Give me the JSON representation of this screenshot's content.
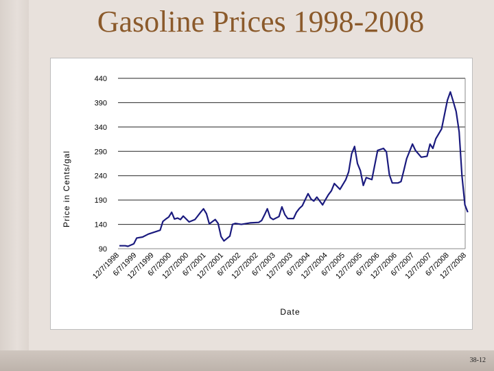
{
  "slide": {
    "title": "Gasoline Prices 1998-2008",
    "page_number": "38-12"
  },
  "chart_data": {
    "type": "line",
    "title": "",
    "xlabel": "Date",
    "ylabel": "Price in Cents/gal",
    "ylim": [
      90,
      440
    ],
    "yticks": [
      90,
      140,
      190,
      240,
      290,
      340,
      390,
      440
    ],
    "grid": "horizontal",
    "legend": "none",
    "line_color": "#1a1a7e",
    "xticks": [
      "12/7/1998",
      "6/7/1999",
      "12/7/1999",
      "6/7/2000",
      "12/7/2000",
      "6/7/2001",
      "12/7/2001",
      "6/7/2002",
      "12/7/2002",
      "6/7/2003",
      "12/7/2003",
      "6/7/2004",
      "12/7/2004",
      "6/7/2005",
      "12/7/2005",
      "6/7/2006",
      "12/7/2006",
      "6/7/2007",
      "12/7/2007",
      "6/7/2008",
      "12/7/2008"
    ],
    "series": [
      {
        "x": [
          "12/7/1998",
          "2/7/1999",
          "3/7/1999",
          "5/7/1999",
          "6/7/1999",
          "8/7/1999",
          "10/7/1999",
          "12/7/1999",
          "2/7/2000",
          "3/7/2000",
          "4/7/2000",
          "5/7/2000",
          "6/7/2000",
          "7/7/2000",
          "8/7/2000",
          "9/7/2000",
          "10/7/2000",
          "12/7/2000",
          "2/7/2001",
          "4/7/2001",
          "5/7/2001",
          "6/7/2001",
          "7/7/2001",
          "9/7/2001",
          "10/7/2001",
          "11/7/2001",
          "12/7/2001",
          "2/7/2002",
          "3/7/2002",
          "4/7/2002",
          "6/7/2002",
          "9/7/2002",
          "12/7/2002",
          "1/7/2003",
          "2/7/2003",
          "3/7/2003",
          "4/7/2003",
          "5/7/2003",
          "7/7/2003",
          "8/7/2003",
          "9/7/2003",
          "10/7/2003",
          "12/7/2003",
          "1/7/2004",
          "2/7/2004",
          "3/7/2004",
          "5/7/2004",
          "6/7/2004",
          "7/7/2004",
          "8/7/2004",
          "10/7/2004",
          "11/7/2004",
          "12/7/2004",
          "1/7/2005",
          "2/7/2005",
          "4/7/2005",
          "6/7/2005",
          "7/7/2005",
          "8/7/2005",
          "9/7/2005",
          "10/7/2005",
          "11/7/2005",
          "12/7/2005",
          "1/7/2006",
          "3/7/2006",
          "5/7/2006",
          "7/7/2006",
          "8/7/2006",
          "9/7/2006",
          "10/7/2006",
          "12/7/2006",
          "1/7/2007",
          "2/7/2007",
          "3/7/2007",
          "5/7/2007",
          "6/7/2007",
          "7/7/2007",
          "8/7/2007",
          "10/7/2007",
          "11/7/2007",
          "12/7/2007",
          "1/7/2008",
          "3/7/2008",
          "5/7/2008",
          "6/7/2008",
          "7/7/2008",
          "8/7/2008",
          "9/7/2008",
          "10/7/2008",
          "11/7/2008",
          "12/7/2008"
        ],
        "y": [
          96,
          96,
          95,
          100,
          112,
          114,
          120,
          124,
          128,
          146,
          151,
          155,
          165,
          151,
          153,
          150,
          157,
          145,
          150,
          165,
          172,
          162,
          141,
          150,
          142,
          115,
          106,
          116,
          140,
          142,
          140,
          143,
          144,
          148,
          160,
          172,
          154,
          150,
          156,
          176,
          160,
          152,
          152,
          165,
          173,
          178,
          203,
          192,
          188,
          196,
          180,
          191,
          201,
          209,
          224,
          212,
          232,
          248,
          285,
          300,
          265,
          250,
          220,
          236,
          232,
          292,
          296,
          289,
          242,
          225,
          225,
          228,
          252,
          275,
          305,
          292,
          285,
          278,
          280,
          305,
          296,
          316,
          336,
          395,
          412,
          393,
          372,
          330,
          240,
          180,
          165
        ]
      }
    ]
  }
}
